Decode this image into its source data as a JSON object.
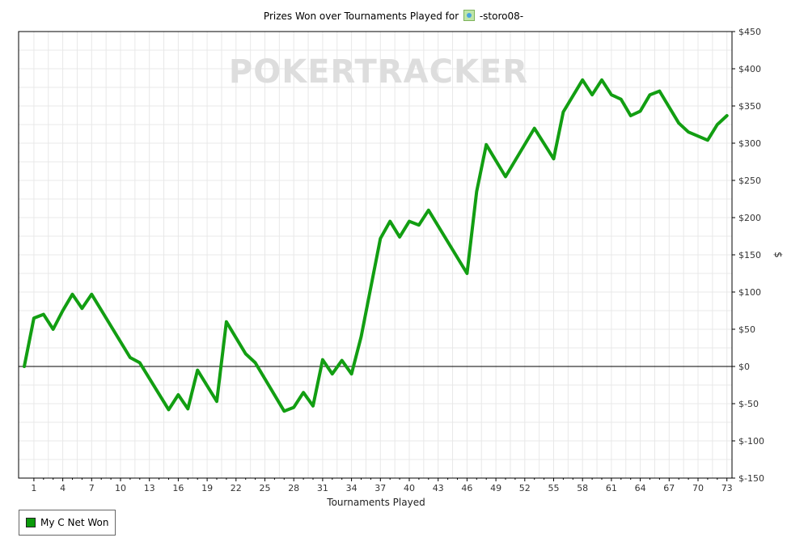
{
  "title": {
    "prefix": "Prizes Won over Tournaments Played for",
    "player": "-storo08-",
    "icon": "player-site-icon"
  },
  "watermark": "POKERTRACKER",
  "colors": {
    "line": "#129e12",
    "grid": "#e8e8e8",
    "zero_line": "#000000",
    "watermark": "#dcdcdc"
  },
  "chart_data": {
    "type": "line",
    "xlabel": "Tournaments Played",
    "ylabel": "$",
    "y_axis_side": "right",
    "ylim": [
      -150,
      450
    ],
    "xlim": [
      0,
      73
    ],
    "y_ticks": [
      450,
      400,
      350,
      300,
      250,
      200,
      150,
      100,
      50,
      0,
      -50,
      -100,
      -150
    ],
    "y_tick_labels": [
      "$450",
      "$400",
      "$350",
      "$300",
      "$250",
      "$200",
      "$150",
      "$100",
      "$50",
      "$0",
      "$-50",
      "$-100",
      "$-150"
    ],
    "x_ticks": [
      1,
      4,
      7,
      10,
      13,
      16,
      19,
      22,
      25,
      28,
      31,
      34,
      37,
      40,
      43,
      46,
      49,
      52,
      55,
      58,
      61,
      64,
      67,
      70,
      73
    ],
    "grid": true,
    "legend_position": "bottom-left",
    "series": [
      {
        "name": "My C Net Won",
        "x": [
          0,
          1,
          2,
          3,
          4,
          5,
          6,
          7,
          11,
          12,
          15,
          16,
          17,
          18,
          20,
          21,
          23,
          24,
          27,
          28,
          29,
          30,
          31,
          32,
          33,
          34,
          35,
          37,
          38,
          39,
          40,
          41,
          42,
          46,
          47,
          48,
          50,
          53,
          55,
          56,
          58,
          59,
          60,
          61,
          62,
          63,
          64,
          65,
          66,
          68,
          69,
          71,
          72,
          73
        ],
        "values": [
          0,
          65,
          70,
          50,
          75,
          97,
          78,
          97,
          12,
          5,
          -58,
          -38,
          -57,
          -5,
          -47,
          60,
          17,
          5,
          -60,
          -55,
          -35,
          -53,
          9,
          -10,
          8,
          -10,
          40,
          172,
          195,
          174,
          195,
          190,
          210,
          125,
          235,
          298,
          255,
          320,
          279,
          342,
          385,
          365,
          385,
          365,
          359,
          337,
          343,
          365,
          370,
          327,
          315,
          304,
          325,
          337
        ]
      }
    ]
  },
  "legend": {
    "items": [
      {
        "label": "My C Net Won",
        "color": "#0a9a0a"
      }
    ]
  }
}
